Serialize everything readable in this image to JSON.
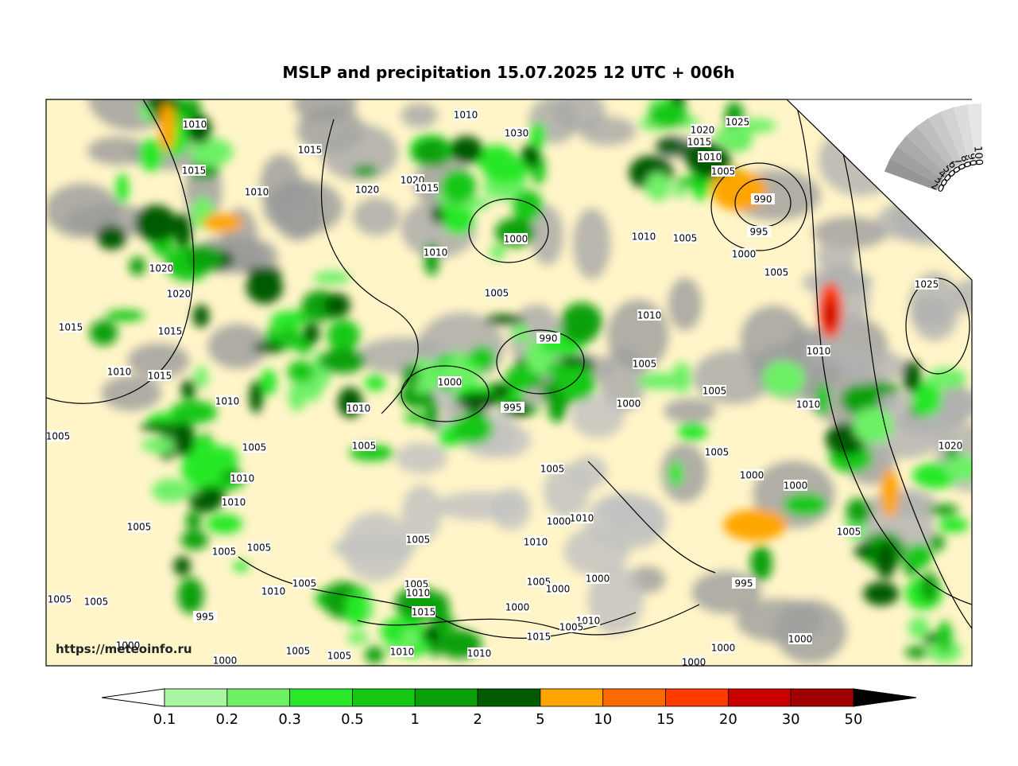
{
  "header": {
    "title": "MSLP and precipitation 15.07.2025 12 UTC + 006h"
  },
  "map": {
    "source": "https://meteoinfo.ru",
    "isobar_labels": [
      "1010",
      "1010",
      "1020",
      "1025",
      "1030",
      "1015",
      "1010",
      "1005",
      "1015",
      "1015",
      "1020",
      "1015",
      "1020",
      "1010",
      "990",
      "995",
      "1000",
      "1010",
      "1005",
      "1010",
      "1000",
      "1005",
      "1020",
      "1025",
      "1020",
      "1005",
      "1010",
      "1015",
      "1015",
      "990",
      "1010",
      "1005",
      "1010",
      "1015",
      "1000",
      "1005",
      "1010",
      "1000",
      "1010",
      "995",
      "1010",
      "1005",
      "1005",
      "1005",
      "1020",
      "1005",
      "1005",
      "1000",
      "1000",
      "1010",
      "1010",
      "1010",
      "1000",
      "1005",
      "1010",
      "1005",
      "1005",
      "1005",
      "1005",
      "1005",
      "1005",
      "1010",
      "1010",
      "1005",
      "1000",
      "1000",
      "995",
      "1005",
      "1005",
      "1015",
      "995",
      "1000",
      "1010",
      "1005",
      "1015",
      "1000",
      "1000",
      "1005",
      "1005",
      "1010",
      "1010",
      "1000",
      "1000",
      "1000"
    ]
  },
  "cloud_scale": {
    "labels": [
      "100",
      "90",
      "80",
      "70",
      "60",
      "50",
      "40",
      "30",
      "20"
    ]
  },
  "legend": {
    "levels": [
      "0.1",
      "0.2",
      "0.3",
      "0.5",
      "1",
      "2",
      "5",
      "10",
      "15",
      "20",
      "30",
      "50"
    ]
  }
}
